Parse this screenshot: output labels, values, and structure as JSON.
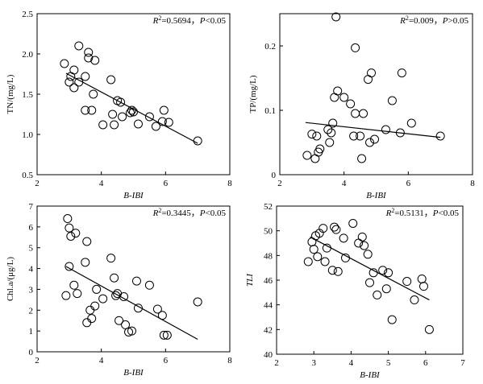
{
  "chart_data": [
    {
      "type": "scatter",
      "xlabel": "B-IBI",
      "ylabel": "TN/(mg/L)",
      "xlim": [
        2,
        8
      ],
      "ylim": [
        0.5,
        2.5
      ],
      "xticks": [
        2,
        4,
        6,
        8
      ],
      "yticks": [
        0.5,
        1.0,
        1.5,
        2.0,
        2.5
      ],
      "ytick_labels": [
        "0.5",
        "1.0",
        "1.5",
        "2.0",
        "2.5"
      ],
      "annotation": {
        "r2": "0.5694",
        "p_prefix": "P",
        "p_rel": "<0.05"
      },
      "points": [
        [
          2.85,
          1.88
        ],
        [
          3.0,
          1.65
        ],
        [
          3.05,
          1.72
        ],
        [
          3.15,
          1.8
        ],
        [
          3.15,
          1.58
        ],
        [
          3.3,
          2.1
        ],
        [
          3.3,
          1.65
        ],
        [
          3.5,
          1.72
        ],
        [
          3.5,
          1.3
        ],
        [
          3.6,
          2.02
        ],
        [
          3.6,
          1.95
        ],
        [
          3.75,
          1.5
        ],
        [
          3.8,
          1.92
        ],
        [
          3.7,
          1.3
        ],
        [
          4.05,
          1.12
        ],
        [
          4.3,
          1.68
        ],
        [
          4.35,
          1.25
        ],
        [
          4.4,
          1.12
        ],
        [
          4.5,
          1.42
        ],
        [
          4.6,
          1.4
        ],
        [
          4.65,
          1.22
        ],
        [
          4.9,
          1.27
        ],
        [
          4.95,
          1.3
        ],
        [
          5.0,
          1.28
        ],
        [
          5.15,
          1.13
        ],
        [
          5.5,
          1.22
        ],
        [
          5.7,
          1.1
        ],
        [
          5.9,
          1.16
        ],
        [
          5.95,
          1.3
        ],
        [
          6.1,
          1.15
        ],
        [
          7.0,
          0.92
        ]
      ],
      "fit": {
        "x": [
          2.9,
          7.0
        ],
        "y": [
          1.76,
          0.89
        ]
      }
    },
    {
      "type": "scatter",
      "xlabel": "B-IBI",
      "ylabel": "TP/(mg/L)",
      "xlim": [
        2,
        8
      ],
      "ylim": [
        0,
        0.25
      ],
      "xticks": [
        2,
        4,
        6,
        8
      ],
      "yticks": [
        0,
        0.1,
        0.2
      ],
      "ytick_labels": [
        "0",
        "0.1",
        "0.2"
      ],
      "annotation": {
        "r2": "0.009",
        "p_prefix": "P",
        "p_rel": ">0.05"
      },
      "points": [
        [
          2.85,
          0.03
        ],
        [
          3.0,
          0.063
        ],
        [
          3.1,
          0.025
        ],
        [
          3.15,
          0.06
        ],
        [
          3.2,
          0.035
        ],
        [
          3.25,
          0.04
        ],
        [
          3.5,
          0.07
        ],
        [
          3.55,
          0.05
        ],
        [
          3.6,
          0.065
        ],
        [
          3.65,
          0.08
        ],
        [
          3.7,
          0.12
        ],
        [
          3.75,
          0.245
        ],
        [
          3.8,
          0.13
        ],
        [
          4.0,
          0.12
        ],
        [
          4.2,
          0.11
        ],
        [
          4.3,
          0.06
        ],
        [
          4.35,
          0.095
        ],
        [
          4.35,
          0.197
        ],
        [
          4.5,
          0.06
        ],
        [
          4.55,
          0.025
        ],
        [
          4.6,
          0.095
        ],
        [
          4.75,
          0.148
        ],
        [
          4.8,
          0.05
        ],
        [
          4.85,
          0.158
        ],
        [
          4.95,
          0.055
        ],
        [
          5.3,
          0.07
        ],
        [
          5.5,
          0.115
        ],
        [
          5.75,
          0.065
        ],
        [
          5.8,
          0.158
        ],
        [
          6.1,
          0.08
        ],
        [
          7.0,
          0.06
        ]
      ],
      "fit": {
        "x": [
          2.8,
          7.0
        ],
        "y": [
          0.081,
          0.058
        ]
      }
    },
    {
      "type": "scatter",
      "xlabel": "B-IBI",
      "ylabel": "Chl.a/(μg/L)",
      "xlim": [
        2,
        8
      ],
      "ylim": [
        0,
        7
      ],
      "xticks": [
        2,
        4,
        6,
        8
      ],
      "yticks": [
        0,
        1,
        2,
        3,
        4,
        5,
        6,
        7
      ],
      "ytick_labels": [
        "0",
        "1",
        "2",
        "3",
        "4",
        "5",
        "6",
        "7"
      ],
      "annotation": {
        "r2": "0.3445",
        "p_prefix": "P",
        "p_rel": "<0.05"
      },
      "points": [
        [
          2.9,
          2.7
        ],
        [
          2.95,
          6.4
        ],
        [
          3.0,
          5.95
        ],
        [
          3.05,
          5.55
        ],
        [
          3.0,
          4.1
        ],
        [
          3.15,
          3.2
        ],
        [
          3.2,
          5.7
        ],
        [
          3.25,
          2.8
        ],
        [
          3.5,
          4.3
        ],
        [
          3.55,
          5.3
        ],
        [
          3.55,
          1.4
        ],
        [
          3.65,
          2.0
        ],
        [
          3.7,
          1.6
        ],
        [
          3.8,
          2.2
        ],
        [
          3.85,
          3.0
        ],
        [
          4.05,
          2.55
        ],
        [
          4.3,
          4.5
        ],
        [
          4.4,
          3.55
        ],
        [
          4.45,
          2.7
        ],
        [
          4.5,
          2.8
        ],
        [
          4.55,
          1.5
        ],
        [
          4.7,
          2.65
        ],
        [
          4.75,
          1.3
        ],
        [
          4.85,
          0.95
        ],
        [
          4.95,
          1.0
        ],
        [
          5.1,
          3.4
        ],
        [
          5.15,
          2.1
        ],
        [
          5.5,
          3.2
        ],
        [
          5.75,
          2.05
        ],
        [
          5.9,
          1.75
        ],
        [
          5.95,
          0.8
        ],
        [
          6.05,
          0.8
        ],
        [
          7.0,
          2.4
        ]
      ],
      "fit": {
        "x": [
          2.9,
          7.0
        ],
        "y": [
          4.1,
          0.6
        ]
      }
    },
    {
      "type": "scatter",
      "xlabel": "B-IBI",
      "ylabel": "TLI",
      "xlim": [
        2,
        7
      ],
      "ylim": [
        40,
        52
      ],
      "xticks": [
        2,
        3,
        4,
        5,
        6,
        7
      ],
      "yticks": [
        40,
        42,
        44,
        46,
        48,
        50,
        52
      ],
      "ytick_labels": [
        "40",
        "42",
        "44",
        "46",
        "48",
        "50",
        "52"
      ],
      "annotation": {
        "r2": "0.5131",
        "p_prefix": "P",
        "p_rel": "<0.05"
      },
      "points": [
        [
          2.85,
          47.5
        ],
        [
          2.95,
          49.1
        ],
        [
          3.0,
          48.5
        ],
        [
          3.05,
          49.6
        ],
        [
          3.1,
          47.9
        ],
        [
          3.15,
          49.8
        ],
        [
          3.25,
          50.2
        ],
        [
          3.3,
          47.5
        ],
        [
          3.35,
          48.6
        ],
        [
          3.5,
          46.8
        ],
        [
          3.55,
          50.3
        ],
        [
          3.6,
          50.1
        ],
        [
          3.65,
          46.7
        ],
        [
          3.8,
          49.4
        ],
        [
          3.85,
          47.8
        ],
        [
          4.05,
          50.6
        ],
        [
          4.2,
          49.0
        ],
        [
          4.3,
          49.5
        ],
        [
          4.35,
          48.8
        ],
        [
          4.45,
          48.1
        ],
        [
          4.5,
          45.8
        ],
        [
          4.6,
          46.6
        ],
        [
          4.7,
          44.8
        ],
        [
          4.85,
          46.8
        ],
        [
          4.95,
          45.3
        ],
        [
          5.0,
          46.6
        ],
        [
          5.1,
          42.8
        ],
        [
          5.5,
          45.9
        ],
        [
          5.7,
          44.4
        ],
        [
          5.9,
          46.1
        ],
        [
          5.95,
          45.5
        ],
        [
          6.1,
          42.0
        ]
      ],
      "fit": {
        "x": [
          2.9,
          6.1
        ],
        "y": [
          49.5,
          44.4
        ]
      }
    }
  ]
}
